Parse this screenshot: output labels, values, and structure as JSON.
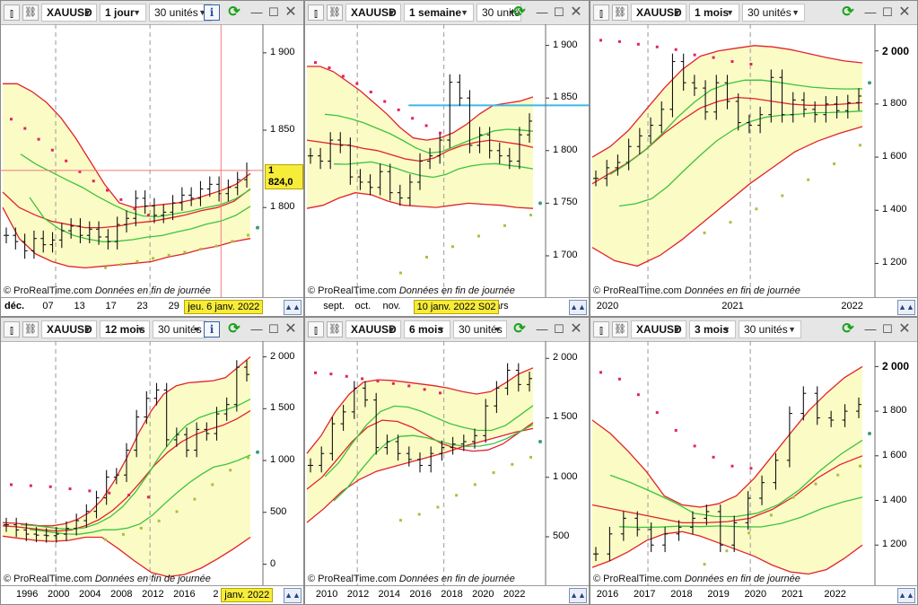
{
  "brand": "© ProRealTime.com",
  "notice": "Données en fin de journée",
  "theme": {
    "band_fill": "#fbfbc6",
    "bollinger_color": "#e3212b",
    "ma_color": "#3cc43c",
    "sar_high_color": "#e0245e",
    "sar_low_color": "#a8c23c",
    "sar_last_color": "#3aa06a",
    "bar_color": "#111111",
    "horizontal_line_color": "#3fb8e4",
    "crosshair_color": "#f07a7a",
    "tag_color": "#f6ec3a"
  },
  "panels": [
    {
      "id": "daily",
      "symbol": "XAUUSD",
      "period": "1 jour",
      "units": "30 unités",
      "icons": [
        "candlestick-icon",
        "link-icon",
        "info-icon",
        "refresh-icon",
        "minimize-icon",
        "maximize-icon",
        "close-icon"
      ],
      "price_labels": [
        "1 900",
        "1 850",
        "1 800"
      ],
      "price_tag": "1 824,0",
      "date_labels": [
        "déc.",
        "07",
        "13",
        "17",
        "23",
        "29"
      ],
      "cursor_tag": "jeu. 6 janv. 2022"
    },
    {
      "id": "weekly",
      "symbol": "XAUUSD",
      "period": "1 semaine",
      "units": "30 unités",
      "icons": [
        "candlestick-icon",
        "link-icon",
        "refresh-icon",
        "minimize-icon",
        "maximize-icon",
        "close-icon"
      ],
      "price_labels": [
        "1 900",
        "1 850",
        "1 800",
        "1 750",
        "1 700"
      ],
      "date_labels": [
        "sept.",
        "oct.",
        "nov.",
        "mars"
      ],
      "cursor_tag": "10 janv. 2022 S02"
    },
    {
      "id": "monthly",
      "symbol": "XAUUSD",
      "period": "1 mois",
      "units": "30 unités",
      "icons": [
        "candlestick-icon",
        "link-icon",
        "refresh-icon",
        "minimize-icon",
        "maximize-icon",
        "close-icon"
      ],
      "price_labels": [
        "2 000",
        "1 800",
        "1 600",
        "1 400",
        "1 200"
      ],
      "date_labels": [
        "2020",
        "2021",
        "2022"
      ]
    },
    {
      "id": "yearly",
      "symbol": "XAUUSD",
      "period": "12 mois",
      "units": "30 unités",
      "icons": [
        "candlestick-icon",
        "link-icon",
        "info-icon",
        "refresh-icon",
        "minimize-icon",
        "maximize-icon",
        "close-icon"
      ],
      "price_labels": [
        "2 000",
        "1 500",
        "1 000",
        "500",
        "0"
      ],
      "date_labels": [
        "1996",
        "2000",
        "2004",
        "2008",
        "2012",
        "2016",
        "2"
      ],
      "cursor_tag": "janv. 2022"
    },
    {
      "id": "semester",
      "symbol": "XAUUSD",
      "period": "6 mois",
      "units": "30 unités",
      "icons": [
        "candlestick-icon",
        "link-icon",
        "refresh-icon",
        "minimize-icon",
        "maximize-icon",
        "close-icon"
      ],
      "price_labels": [
        "2 000",
        "1 500",
        "1 000",
        "500"
      ],
      "date_labels": [
        "2010",
        "2012",
        "2014",
        "2016",
        "2018",
        "2020",
        "2022"
      ]
    },
    {
      "id": "quarterly",
      "symbol": "XAUUSD",
      "period": "3 mois",
      "units": "30 unités",
      "icons": [
        "candlestick-icon",
        "link-icon",
        "refresh-icon",
        "minimize-icon",
        "maximize-icon",
        "close-icon"
      ],
      "price_labels": [
        "2 000",
        "1 800",
        "1 600",
        "1 400",
        "1 200"
      ],
      "date_labels": [
        "2016",
        "2017",
        "2018",
        "2019",
        "2020",
        "2021",
        "2022"
      ]
    }
  ],
  "chart_data": [
    {
      "type": "ohlc",
      "panel": "daily",
      "y_ticks": [
        1900,
        1850,
        1800
      ],
      "ylim": [
        1745,
        1915
      ],
      "x_ticks": [
        "déc.",
        "07",
        "13",
        "17",
        "23",
        "29"
      ],
      "last_price": 1824.0,
      "close_points": [
        1782,
        1778,
        1772,
        1780,
        1776,
        1779,
        1785,
        1788,
        1782,
        1786,
        1781,
        1778,
        1789,
        1793,
        1806,
        1801,
        1795,
        1797,
        1803,
        1808,
        1806,
        1812,
        1815,
        1809,
        1813,
        1818,
        1824
      ],
      "upper_band": [
        1880,
        1880,
        1875,
        1868,
        1858,
        1845,
        1830,
        1815,
        1803,
        1800,
        1801,
        1802,
        1803,
        1805,
        1808,
        1811,
        1815,
        1822
      ],
      "middle_band": [
        1810,
        1800,
        1795,
        1791,
        1789,
        1787,
        1787,
        1788,
        1790,
        1791,
        1793,
        1795,
        1798,
        1800,
        1804,
        1812
      ],
      "lower_band": [
        1800,
        1780,
        1770,
        1765,
        1762,
        1761,
        1762,
        1763,
        1764,
        1765,
        1768,
        1770,
        1773,
        1775,
        1778,
        1780
      ],
      "sar_high": [
        1858,
        1852,
        1845,
        1838,
        1831,
        1824,
        1818,
        1812,
        1806,
        1800,
        1796
      ],
      "sar_low": [
        1762,
        1764,
        1766,
        1768,
        1770,
        1772,
        1774,
        1776,
        1779,
        1783
      ],
      "sar_last": 1787
    },
    {
      "type": "ohlc",
      "panel": "weekly",
      "y_ticks": [
        1900,
        1850,
        1800,
        1750,
        1700
      ],
      "ylim": [
        1665,
        1915
      ],
      "x_ticks": [
        "sept.",
        "oct.",
        "nov.",
        "mars"
      ],
      "horizontal_line": 1843,
      "close_points": [
        1795,
        1790,
        1810,
        1805,
        1775,
        1770,
        1765,
        1780,
        1760,
        1755,
        1770,
        1790,
        1795,
        1810,
        1865,
        1850,
        1805,
        1815,
        1800,
        1795,
        1790,
        1815,
        1828
      ],
      "upper_band": [
        1880,
        1880,
        1875,
        1866,
        1857,
        1846,
        1835,
        1822,
        1812,
        1810,
        1812,
        1817,
        1825,
        1835,
        1843,
        1845,
        1847,
        1851
      ],
      "middle_band": [
        1810,
        1808,
        1806,
        1805,
        1802,
        1800,
        1796,
        1792,
        1790,
        1793,
        1800,
        1805,
        1808,
        1810,
        1808,
        1806,
        1803
      ],
      "lower_band": [
        1745,
        1748,
        1755,
        1760,
        1758,
        1752,
        1748,
        1747,
        1746,
        1748,
        1750,
        1749,
        1748,
        1746,
        1745
      ],
      "sar_high": [
        1885,
        1880,
        1872,
        1865,
        1857,
        1848,
        1840,
        1832,
        1825,
        1818
      ],
      "sar_low": [
        1685,
        1700,
        1710,
        1720,
        1730,
        1740
      ],
      "sar_last": 1750
    },
    {
      "type": "ohlc",
      "panel": "monthly",
      "y_ticks": [
        2000,
        1800,
        1600,
        1400,
        1200
      ],
      "ylim": [
        1090,
        2080
      ],
      "x_ticks": [
        "2020",
        "2021",
        "2022"
      ],
      "close_points": [
        1520,
        1560,
        1580,
        1640,
        1680,
        1720,
        1780,
        1960,
        1880,
        1860,
        1770,
        1880,
        1810,
        1730,
        1720,
        1760,
        1900,
        1760,
        1815,
        1780,
        1760,
        1800,
        1775,
        1805,
        1830
      ],
      "upper_band": [
        1600,
        1640,
        1700,
        1780,
        1860,
        1930,
        1980,
        2000,
        2010,
        2020,
        2015,
        2005,
        1990,
        1975,
        1962,
        1955
      ],
      "middle_band": [
        1500,
        1540,
        1580,
        1630,
        1690,
        1740,
        1785,
        1810,
        1825,
        1820,
        1810,
        1800,
        1795,
        1796,
        1800,
        1805
      ],
      "lower_band": [
        1260,
        1210,
        1190,
        1230,
        1290,
        1360,
        1430,
        1500,
        1560,
        1620,
        1660,
        1690,
        1715
      ],
      "sar_high": [
        2045,
        2040,
        2030,
        2020,
        2010,
        1990,
        1980,
        1965,
        1955
      ],
      "sar_low": [
        1320,
        1360,
        1410,
        1460,
        1520,
        1580,
        1650
      ],
      "sar_last": 1880
    },
    {
      "type": "ohlc",
      "panel": "yearly",
      "y_ticks": [
        2000,
        1500,
        1000,
        500,
        0
      ],
      "ylim": [
        -160,
        2100
      ],
      "x_ticks": [
        "1996",
        "2000",
        "2004",
        "2008",
        "2012",
        "2016",
        "2"
      ],
      "close_points": [
        380,
        330,
        290,
        280,
        275,
        290,
        345,
        420,
        510,
        640,
        840,
        860,
        1100,
        1420,
        1600,
        1680,
        1200,
        1250,
        1100,
        1300,
        1260,
        1450,
        1540,
        1900,
        1830
      ],
      "upper_band": [
        400,
        395,
        385,
        370,
        370,
        390,
        430,
        500,
        620,
        800,
        1020,
        1270,
        1480,
        1640,
        1720,
        1750,
        1760,
        1770,
        1800,
        1900,
        2000
      ],
      "middle_band": [
        370,
        360,
        345,
        330,
        320,
        330,
        370,
        430,
        520,
        640,
        790,
        950,
        1080,
        1180,
        1250,
        1300,
        1340,
        1400,
        1480
      ],
      "lower_band": [
        270,
        250,
        230,
        220,
        230,
        260,
        260,
        150,
        30,
        -80,
        -120,
        -100,
        -40,
        50,
        150,
        260
      ],
      "sar_high": [
        780,
        770,
        760,
        740,
        720,
        700,
        680,
        660
      ],
      "sar_low": [
        250,
        300,
        360,
        430,
        520,
        640,
        780,
        920,
        1040
      ],
      "sar_last": 1080
    },
    {
      "type": "ohlc",
      "panel": "semester",
      "y_ticks": [
        2000,
        1500,
        1000,
        500
      ],
      "ylim": [
        130,
        2100
      ],
      "x_ticks": [
        "2010",
        "2012",
        "2014",
        "2016",
        "2018",
        "2020",
        "2022"
      ],
      "close_points": [
        1100,
        1200,
        1450,
        1550,
        1750,
        1650,
        1250,
        1300,
        1200,
        1150,
        1100,
        1200,
        1250,
        1280,
        1300,
        1350,
        1600,
        1750,
        1900,
        1780,
        1830
      ],
      "upper_band": [
        1200,
        1350,
        1550,
        1700,
        1800,
        1820,
        1815,
        1800,
        1785,
        1770,
        1750,
        1720,
        1700,
        1720,
        1790,
        1870,
        1920
      ],
      "middle_band": [
        900,
        1000,
        1150,
        1300,
        1420,
        1480,
        1470,
        1420,
        1350,
        1280,
        1240,
        1220,
        1230,
        1280,
        1370,
        1460
      ],
      "lower_band": [
        620,
        740,
        880,
        980,
        1050,
        1090,
        1130,
        1170,
        1210,
        1260,
        1300,
        1340,
        1380,
        1410
      ],
      "sar_high": [
        1890,
        1880,
        1860,
        1840,
        1820,
        1800,
        1780,
        1750,
        1720
      ],
      "sar_low": [
        650,
        700,
        760,
        860,
        950,
        1050,
        1120,
        1180
      ],
      "sar_last": 1300
    },
    {
      "type": "ohlc",
      "panel": "quarterly",
      "y_ticks": [
        2000,
        1800,
        1600,
        1400,
        1200
      ],
      "ylim": [
        1040,
        2090
      ],
      "x_ticks": [
        "2016",
        "2017",
        "2018",
        "2019",
        "2020",
        "2021",
        "2022"
      ],
      "close_points": [
        1160,
        1250,
        1320,
        1270,
        1200,
        1250,
        1280,
        1320,
        1350,
        1200,
        1300,
        1410,
        1480,
        1580,
        1790,
        1880,
        1770,
        1760,
        1800,
        1830
      ],
      "upper_band": [
        1760,
        1700,
        1620,
        1530,
        1420,
        1380,
        1370,
        1385,
        1420,
        1500,
        1600,
        1700,
        1800,
        1880,
        1950,
        2000
      ],
      "middle_band": [
        1380,
        1360,
        1340,
        1320,
        1300,
        1300,
        1305,
        1320,
        1360,
        1420,
        1500,
        1560,
        1600
      ],
      "lower_band": [
        1100,
        1130,
        1170,
        1220,
        1250,
        1260,
        1240,
        1210,
        1180,
        1150,
        1110,
        1080,
        1070,
        1090,
        1140,
        1200
      ],
      "sar_high": [
        1980,
        1950,
        1880,
        1800,
        1720,
        1650,
        1600,
        1560,
        1550
      ],
      "sar_low": [
        1120,
        1180,
        1260,
        1340,
        1420,
        1480,
        1520,
        1560
      ],
      "sar_last": 1700
    }
  ]
}
